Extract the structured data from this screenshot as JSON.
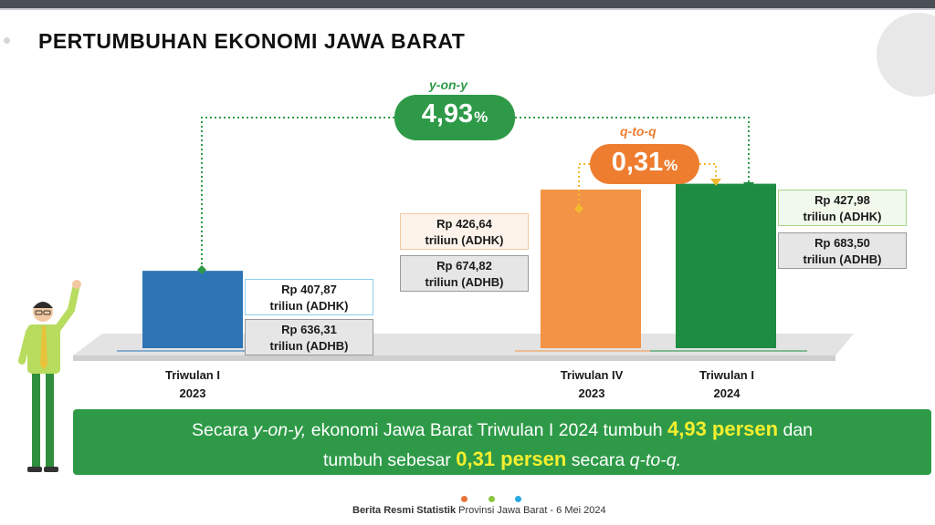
{
  "title": "PERTUMBUHAN EKONOMI JAWA BARAT",
  "yoy": {
    "label": "y-on-y",
    "value": "4,93",
    "unit": "%"
  },
  "qtq": {
    "label": "q-to-q",
    "value": "0,31",
    "unit": "%"
  },
  "colors": {
    "q1_2023": "#2e75b6",
    "q4_2023": "#f39345",
    "q1_2024": "#1e8c42",
    "yoy": "#2e9a48",
    "qtq": "#ee7d30"
  },
  "chart_data": {
    "type": "bar",
    "categories": [
      "Triwulan I 2023",
      "Triwulan IV 2023",
      "Triwulan I 2024"
    ],
    "category_lines": [
      [
        "Triwulan I",
        "2023"
      ],
      [
        "Triwulan IV",
        "2023"
      ],
      [
        "Triwulan I",
        "2024"
      ]
    ],
    "series": [
      {
        "name": "ADHK",
        "values": [
          407.87,
          426.64,
          427.98
        ]
      },
      {
        "name": "ADHB",
        "values": [
          636.31,
          674.82,
          683.5
        ]
      }
    ],
    "value_labels": [
      {
        "adhk": [
          "Rp 407,87",
          "triliun (ADHK)"
        ],
        "adhb": [
          "Rp 636,31",
          "triliun (ADHB)"
        ]
      },
      {
        "adhk": [
          "Rp 426,64",
          "triliun (ADHK)"
        ],
        "adhb": [
          "Rp 674,82",
          "triliun (ADHB)"
        ]
      },
      {
        "adhk": [
          "Rp 427,98",
          "triliun (ADHK)"
        ],
        "adhb": [
          "Rp 683,50",
          "triliun (ADHB)"
        ]
      }
    ],
    "ylim": [
      390,
      430
    ],
    "title": "",
    "xlabel": "",
    "ylabel": ""
  },
  "summary": {
    "p1": "Secara ",
    "p2": "y-on-y,",
    "p3": " ekonomi Jawa Barat Triwulan I 2024 tumbuh ",
    "p4": "4,93 persen",
    "p5": " dan",
    "p6": "tumbuh sebesar ",
    "p7": "0,31 persen",
    "p8": " secara ",
    "p9": "q-to-q."
  },
  "footer": {
    "bold": "Berita Resmi Statistik",
    "rest": " Provinsi Jawa Barat - 6 Mei 2024"
  }
}
